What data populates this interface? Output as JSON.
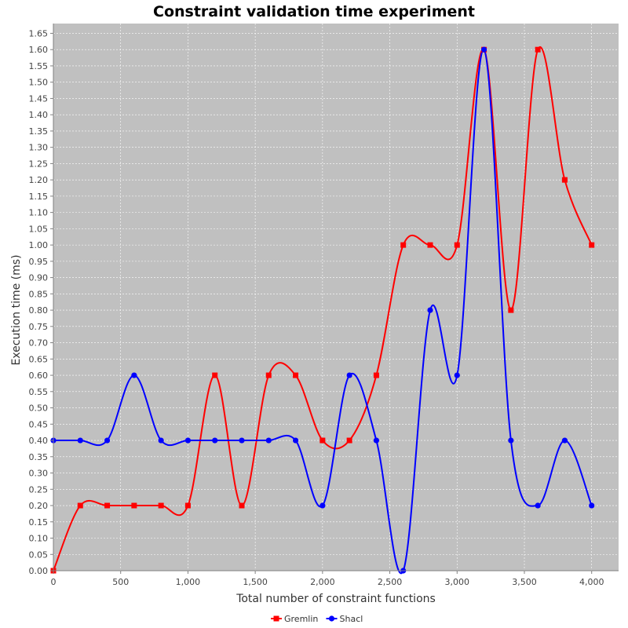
{
  "chart_data": {
    "type": "line",
    "title": "Constraint validation time experiment",
    "xlabel": "Total number of constraint functions",
    "ylabel": "Execution time (ms)",
    "xlim": [
      0,
      4200
    ],
    "ylim": [
      0,
      1.68
    ],
    "x_ticks": [
      0,
      500,
      1000,
      1500,
      2000,
      2500,
      3000,
      3500,
      4000
    ],
    "x_tick_labels": [
      "0",
      "500",
      "1,000",
      "1,500",
      "2,000",
      "2,500",
      "3,000",
      "3,500",
      "4,000"
    ],
    "y_ticks": [
      0,
      0.05,
      0.1,
      0.15,
      0.2,
      0.25,
      0.3,
      0.35,
      0.4,
      0.45,
      0.5,
      0.55,
      0.6,
      0.65,
      0.7,
      0.75,
      0.8,
      0.85,
      0.9,
      0.95,
      1.0,
      1.05,
      1.1,
      1.15,
      1.2,
      1.25,
      1.3,
      1.35,
      1.4,
      1.45,
      1.5,
      1.55,
      1.6,
      1.65
    ],
    "y_tick_labels": [
      "0.00",
      "0.05",
      "0.10",
      "0.15",
      "0.20",
      "0.25",
      "0.30",
      "0.35",
      "0.40",
      "0.45",
      "0.50",
      "0.55",
      "0.60",
      "0.65",
      "0.70",
      "0.75",
      "0.80",
      "0.85",
      "0.90",
      "0.95",
      "1.00",
      "1.05",
      "1.10",
      "1.15",
      "1.20",
      "1.25",
      "1.30",
      "1.35",
      "1.40",
      "1.45",
      "1.50",
      "1.55",
      "1.60",
      "1.65"
    ],
    "x": [
      0,
      200,
      400,
      600,
      800,
      1000,
      1200,
      1400,
      1600,
      1800,
      2000,
      2200,
      2400,
      2600,
      2800,
      3000,
      3200,
      3400,
      3600,
      3800,
      4000
    ],
    "series": [
      {
        "name": "Gremlin",
        "color": "#ff0000",
        "marker": "square",
        "values": [
          0.0,
          0.2,
          0.2,
          0.2,
          0.2,
          0.2,
          0.6,
          0.2,
          0.6,
          0.6,
          0.4,
          0.4,
          0.6,
          1.0,
          1.0,
          1.0,
          1.6,
          0.8,
          1.6,
          1.2,
          1.0
        ]
      },
      {
        "name": "Shacl",
        "color": "#0000ff",
        "marker": "circle",
        "values": [
          0.4,
          0.4,
          0.4,
          0.6,
          0.4,
          0.4,
          0.4,
          0.4,
          0.4,
          0.4,
          0.2,
          0.6,
          0.4,
          0.0,
          0.8,
          0.6,
          1.6,
          0.4,
          0.2,
          0.4,
          0.2
        ]
      }
    ],
    "smooth": true,
    "grid": true,
    "plot_background": "#c0c0c0",
    "legend_position": "bottom-center"
  }
}
